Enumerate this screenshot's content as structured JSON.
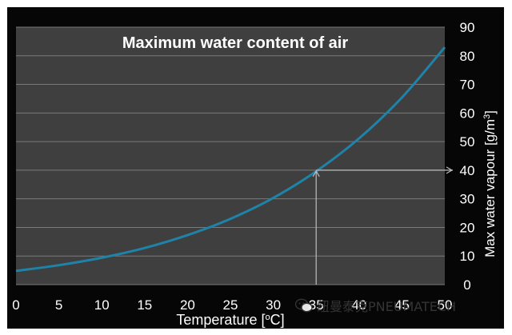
{
  "chart_data": {
    "type": "line",
    "title": "Maximum water content of air",
    "xlabel": "Temperature [°C]",
    "xlabel_prefix": "Temperature [",
    "xlabel_sup": "o",
    "xlabel_suffix": "C]",
    "ylabel": "Max water vapour [g/m³]",
    "ylabel_main": "Max water vapour  [g/m",
    "ylabel_sup": "3",
    "ylabel_end": "]",
    "xlim": [
      0,
      50
    ],
    "ylim": [
      0,
      90
    ],
    "x_ticks": [
      0,
      5,
      10,
      15,
      20,
      25,
      30,
      35,
      40,
      45,
      50
    ],
    "y_ticks": [
      0,
      10,
      20,
      30,
      40,
      50,
      60,
      70,
      80,
      90
    ],
    "y_axis_side": "right",
    "grid": "horizontal",
    "series": [
      {
        "color": "#1f82a8",
        "x": [
          0,
          5,
          10,
          15,
          20,
          25,
          30,
          35,
          40,
          45,
          50
        ],
        "y": [
          4.8,
          6.8,
          9.4,
          12.8,
          17.3,
          23.0,
          30.3,
          39.6,
          51.1,
          65.4,
          83.0
        ]
      }
    ],
    "annotation": {
      "x": 35,
      "y": 40
    }
  },
  "colors": {
    "frame": "#060606",
    "plot_bg": "#3f3f3f",
    "grid": "#7a7a7a",
    "text": "#ffffff",
    "curve": "#1f82a8",
    "arrow": "#bdbdbd"
  },
  "watermark": {
    "text": "纽曼泰克PNEUMATECH",
    "icon": "wechat-logo-icon"
  }
}
